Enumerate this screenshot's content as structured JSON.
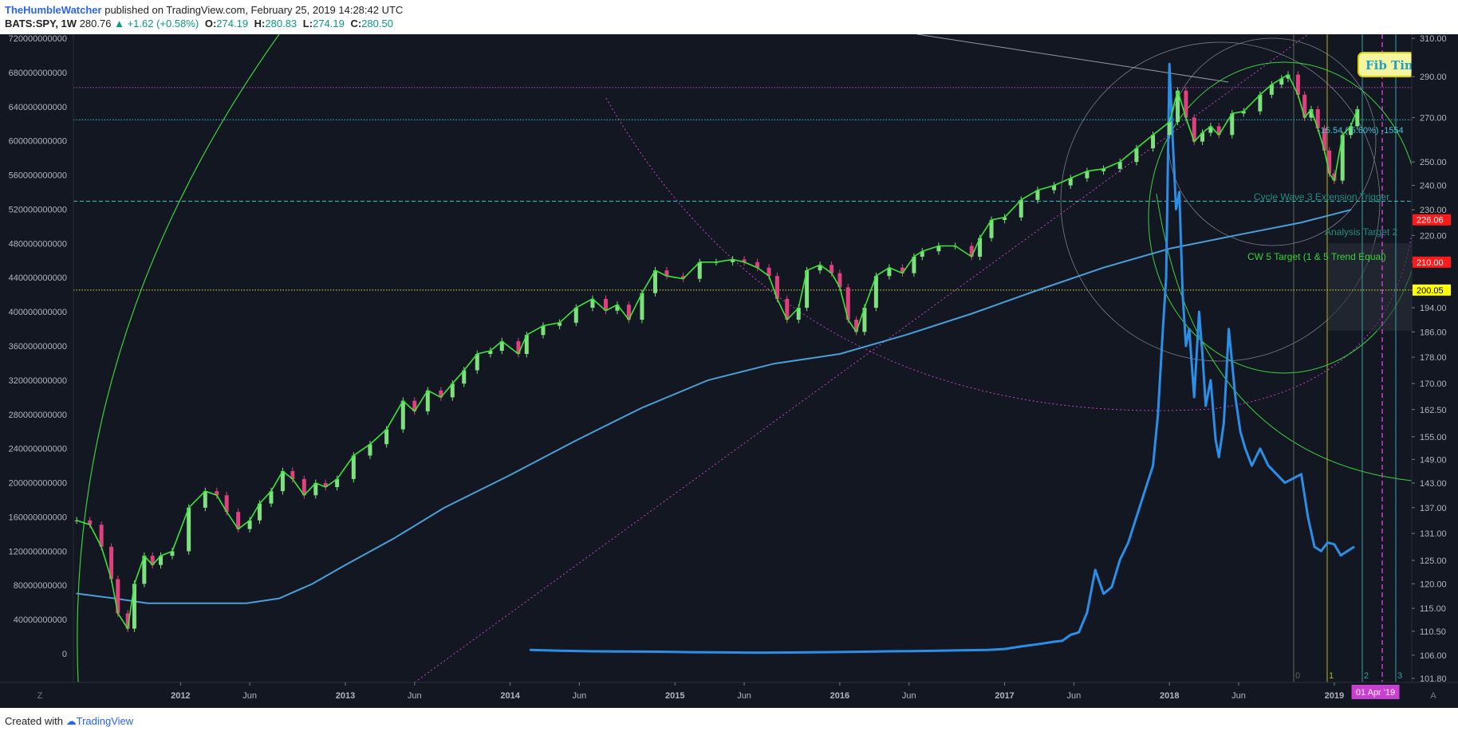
{
  "header": {
    "author": "TheHumbleWatcher",
    "published_text": "published on TradingView.com, February 25, 2019 14:28:42 UTC"
  },
  "symbol_bar": {
    "symbol": "BATS:SPY, 1W",
    "last": "280.76",
    "change": "+1.62 (+0.58%)",
    "open_label": "O:",
    "open": "274.19",
    "high_label": "H:",
    "high": "280.83",
    "low_label": "L:",
    "low": "274.19",
    "close_label": "C:",
    "close": "280.50"
  },
  "footer": {
    "created_with": "Created with",
    "brand": "TradingView"
  },
  "colors": {
    "background": "#131722",
    "up": "#7ee07e",
    "down": "#e0407e",
    "zigzag": "#39e639",
    "ma": "#4a9fd8",
    "blue_series": "#2b8fe8",
    "fib_magenta": "#c93fd1",
    "yellow_line": "#e6e62e",
    "cyan_line": "#36c6d8"
  },
  "chart_data": {
    "type": "line",
    "title": "",
    "left_axis": {
      "ticks": [
        "720000000000",
        "680000000000",
        "640000000000",
        "600000000000",
        "560000000000",
        "520000000000",
        "480000000000",
        "440000000000",
        "400000000000",
        "360000000000",
        "320000000000",
        "280000000000",
        "240000000000",
        "200000000000",
        "160000000000",
        "120000000000",
        "80000000000",
        "40000000000",
        "0"
      ],
      "range": [
        0,
        720000000000
      ]
    },
    "right_axis": {
      "scale": "log",
      "ticks": [
        "310.00",
        "290.00",
        "270.00",
        "250.00",
        "240.00",
        "230.00",
        "220.00",
        "210.00",
        "200.00",
        "194.00",
        "186.00",
        "178.00",
        "170.00",
        "162.50",
        "155.00",
        "149.00",
        "143.00",
        "137.00",
        "131.00",
        "125.00",
        "120.00",
        "115.00",
        "110.50",
        "106.00",
        "101.80"
      ],
      "range": [
        101.8,
        310.0
      ],
      "price_tags": [
        {
          "text": "226.06",
          "value": 226.06,
          "color": "#ff1a1a",
          "text_color": "#ffffff"
        },
        {
          "text": "210.00",
          "value": 210.0,
          "color": "#ff1a1a",
          "text_color": "#ffffff"
        },
        {
          "text": "200.05",
          "value": 200.05,
          "color": "#ffff00",
          "text_color": "#000000"
        }
      ]
    },
    "x_axis": {
      "ticks": [
        "2012",
        "Jun",
        "2013",
        "Jun",
        "2014",
        "Jun",
        "2015",
        "Jun",
        "2016",
        "Jun",
        "2017",
        "Jun",
        "2018",
        "Jun",
        "2019"
      ],
      "tick_dates": [
        2012.0,
        2012.42,
        2013.0,
        2013.42,
        2014.0,
        2014.42,
        2015.0,
        2015.42,
        2016.0,
        2016.42,
        2017.0,
        2017.42,
        2018.0,
        2018.42,
        2019.0
      ],
      "range": [
        2011.35,
        2019.47
      ],
      "date_tag": "01 Apr '19",
      "date_tag_value": 2019.25
    },
    "series": [
      {
        "kind": "candles",
        "axis": "right",
        "x": [
          2011.37,
          2011.45,
          2011.52,
          2011.58,
          2011.62,
          2011.68,
          2011.72,
          2011.78,
          2011.83,
          2011.88,
          2011.95,
          2012.05,
          2012.15,
          2012.22,
          2012.28,
          2012.35,
          2012.42,
          2012.48,
          2012.55,
          2012.62,
          2012.68,
          2012.75,
          2012.82,
          2012.88,
          2012.95,
          2013.05,
          2013.15,
          2013.25,
          2013.35,
          2013.42,
          2013.5,
          2013.58,
          2013.65,
          2013.72,
          2013.8,
          2013.88,
          2013.95,
          2014.05,
          2014.1,
          2014.2,
          2014.3,
          2014.4,
          2014.5,
          2014.58,
          2014.65,
          2014.72,
          2014.8,
          2014.88,
          2014.95,
          2015.05,
          2015.15,
          2015.25,
          2015.35,
          2015.42,
          2015.5,
          2015.57,
          2015.62,
          2015.68,
          2015.75,
          2015.8,
          2015.88,
          2015.95,
          2016.0,
          2016.05,
          2016.1,
          2016.15,
          2016.22,
          2016.3,
          2016.38,
          2016.45,
          2016.5,
          2016.6,
          2016.7,
          2016.8,
          2016.85,
          2016.92,
          2017.0,
          2017.1,
          2017.2,
          2017.3,
          2017.4,
          2017.5,
          2017.6,
          2017.7,
          2017.8,
          2017.9,
          2018.0,
          2018.05,
          2018.1,
          2018.15,
          2018.2,
          2018.25,
          2018.3,
          2018.38,
          2018.45,
          2018.55,
          2018.62,
          2018.68,
          2018.72,
          2018.78,
          2018.82,
          2018.86,
          2018.9,
          2018.94,
          2018.97,
          2019.0,
          2019.05,
          2019.1,
          2019.14
        ],
        "close": [
          134,
          133,
          128,
          121,
          114,
          111,
          120,
          126,
          124,
          126,
          127,
          137,
          141,
          140,
          136,
          132,
          134,
          138,
          141,
          146,
          144,
          140,
          143,
          142,
          144,
          150,
          153,
          157,
          165,
          162,
          168,
          166,
          170,
          174,
          179,
          180,
          183,
          179,
          185,
          188,
          189,
          194,
          197,
          193,
          195,
          190,
          199,
          207,
          205,
          204,
          210,
          210,
          211,
          210,
          208,
          205,
          197,
          190,
          194,
          207,
          209,
          206,
          201,
          190,
          186,
          194,
          205,
          208,
          206,
          212,
          214,
          216,
          216,
          212,
          219,
          226,
          227,
          234,
          238,
          240,
          243,
          246,
          247,
          250,
          256,
          262,
          268,
          283,
          270,
          259,
          263,
          266,
          262,
          272,
          273,
          281,
          286,
          289,
          291,
          281,
          270,
          274,
          265,
          255,
          245,
          242,
          262,
          266,
          274
        ],
        "color_up": "#7ee07e",
        "color_down": "#e0407e"
      },
      {
        "kind": "line",
        "name": "",
        "axis": "left",
        "x": [
          2014.12,
          2014.3,
          2014.5,
          2014.7,
          2014.9,
          2015.1,
          2015.3,
          2015.5,
          2015.7,
          2015.9,
          2016.1,
          2016.3,
          2016.5,
          2016.7,
          2016.9,
          2017.0,
          2017.1,
          2017.2,
          2017.3,
          2017.35,
          2017.4,
          2017.45,
          2017.5,
          2017.55,
          2017.6,
          2017.65,
          2017.7,
          2017.75,
          2017.8,
          2017.85,
          2017.9,
          2017.93,
          2017.96,
          2017.98,
          2018.0,
          2018.02,
          2018.04,
          2018.06,
          2018.08,
          2018.1,
          2018.12,
          2018.15,
          2018.18,
          2018.2,
          2018.22,
          2018.25,
          2018.28,
          2018.3,
          2018.33,
          2018.36,
          2018.4,
          2018.43,
          2018.46,
          2018.5,
          2018.55,
          2018.6,
          2018.65,
          2018.7,
          2018.75,
          2018.8,
          2018.84,
          2018.88,
          2018.92,
          2018.96,
          2019.0,
          2019.04,
          2019.08,
          2019.12
        ],
        "y": [
          4500000000.0,
          3500000000.0,
          2800000000.0,
          2600000000.0,
          2300000000.0,
          1800000000.0,
          1500000000.0,
          1200000000.0,
          1400000000.0,
          1800000000.0,
          2200000000.0,
          2800000000.0,
          3200000000.0,
          3800000000.0,
          4500000000.0,
          5500000000.0,
          8500000000.0,
          11000000000.0,
          14000000000.0,
          15000000000.0,
          22000000000.0,
          25000000000.0,
          48000000000.0,
          98000000000.0,
          70000000000.0,
          78000000000.0,
          110000000000.0,
          130000000000.0,
          160000000000.0,
          190000000000.0,
          220000000000.0,
          280000000000.0,
          380000000000.0,
          440000000000.0,
          690000000000.0,
          600000000000.0,
          520000000000.0,
          540000000000.0,
          420000000000.0,
          360000000000.0,
          380000000000.0,
          300000000000.0,
          400000000000.0,
          350000000000.0,
          290000000000.0,
          320000000000.0,
          250000000000.0,
          230000000000.0,
          270000000000.0,
          380000000000.0,
          300000000000.0,
          260000000000.0,
          240000000000.0,
          220000000000.0,
          240000000000.0,
          220000000000.0,
          210000000000.0,
          200000000000.0,
          205000000000.0,
          210000000000.0,
          160000000000.0,
          125000000000.0,
          120000000000.0,
          130000000000.0,
          128000000000.0,
          115000000000.0,
          120000000000.0,
          125000000000.0
        ],
        "color": "#2b8fe8"
      },
      {
        "kind": "line",
        "name": "",
        "axis": "right",
        "x": [
          2011.37,
          2011.6,
          2011.8,
          2012.0,
          2012.2,
          2012.4,
          2012.6,
          2012.8,
          2013.0,
          2013.3,
          2013.6,
          2014.0,
          2014.4,
          2014.8,
          2015.2,
          2015.6,
          2016.0,
          2016.4,
          2016.8,
          2017.2,
          2017.6,
          2018.0,
          2018.4,
          2018.8,
          2019.1
        ],
        "close": [
          118,
          117,
          116,
          116,
          116,
          116,
          117,
          120,
          124,
          130,
          137,
          145,
          154,
          163,
          171,
          176,
          179,
          185,
          192,
          200,
          208,
          215,
          220,
          225,
          230
        ],
        "color": "#4a9fd8"
      }
    ],
    "annotations": [
      {
        "text": "Fib Tim",
        "kind": "label-box"
      },
      {
        "text": "Cycle Wave 3 Extension Trigger",
        "kind": "label"
      },
      {
        "text": "Analysis Target 2",
        "kind": "label"
      },
      {
        "text": "CW 5 Target (1 & 5 Trend Equal)",
        "kind": "label"
      },
      {
        "text": "-15.54 (-5.60%) -1554",
        "kind": "label"
      },
      {
        "text": "0",
        "kind": "fib-time"
      },
      {
        "text": "1",
        "kind": "fib-time"
      },
      {
        "text": "2",
        "kind": "fib-time"
      },
      {
        "text": "3",
        "kind": "fib-time"
      }
    ],
    "horizontal_lines": [
      {
        "value": 284.5,
        "axis": "right",
        "color": "#c93fd1",
        "style": "dotted"
      },
      {
        "value": 269.0,
        "axis": "right",
        "color": "#36c6d8",
        "style": "dotted"
      },
      {
        "value": 233.5,
        "axis": "right",
        "color": "#36c6d8",
        "style": "dashed"
      },
      {
        "value": 200.05,
        "axis": "right",
        "color": "#e6e62e",
        "style": "dotted"
      }
    ],
    "grid": false,
    "legend": "none"
  }
}
